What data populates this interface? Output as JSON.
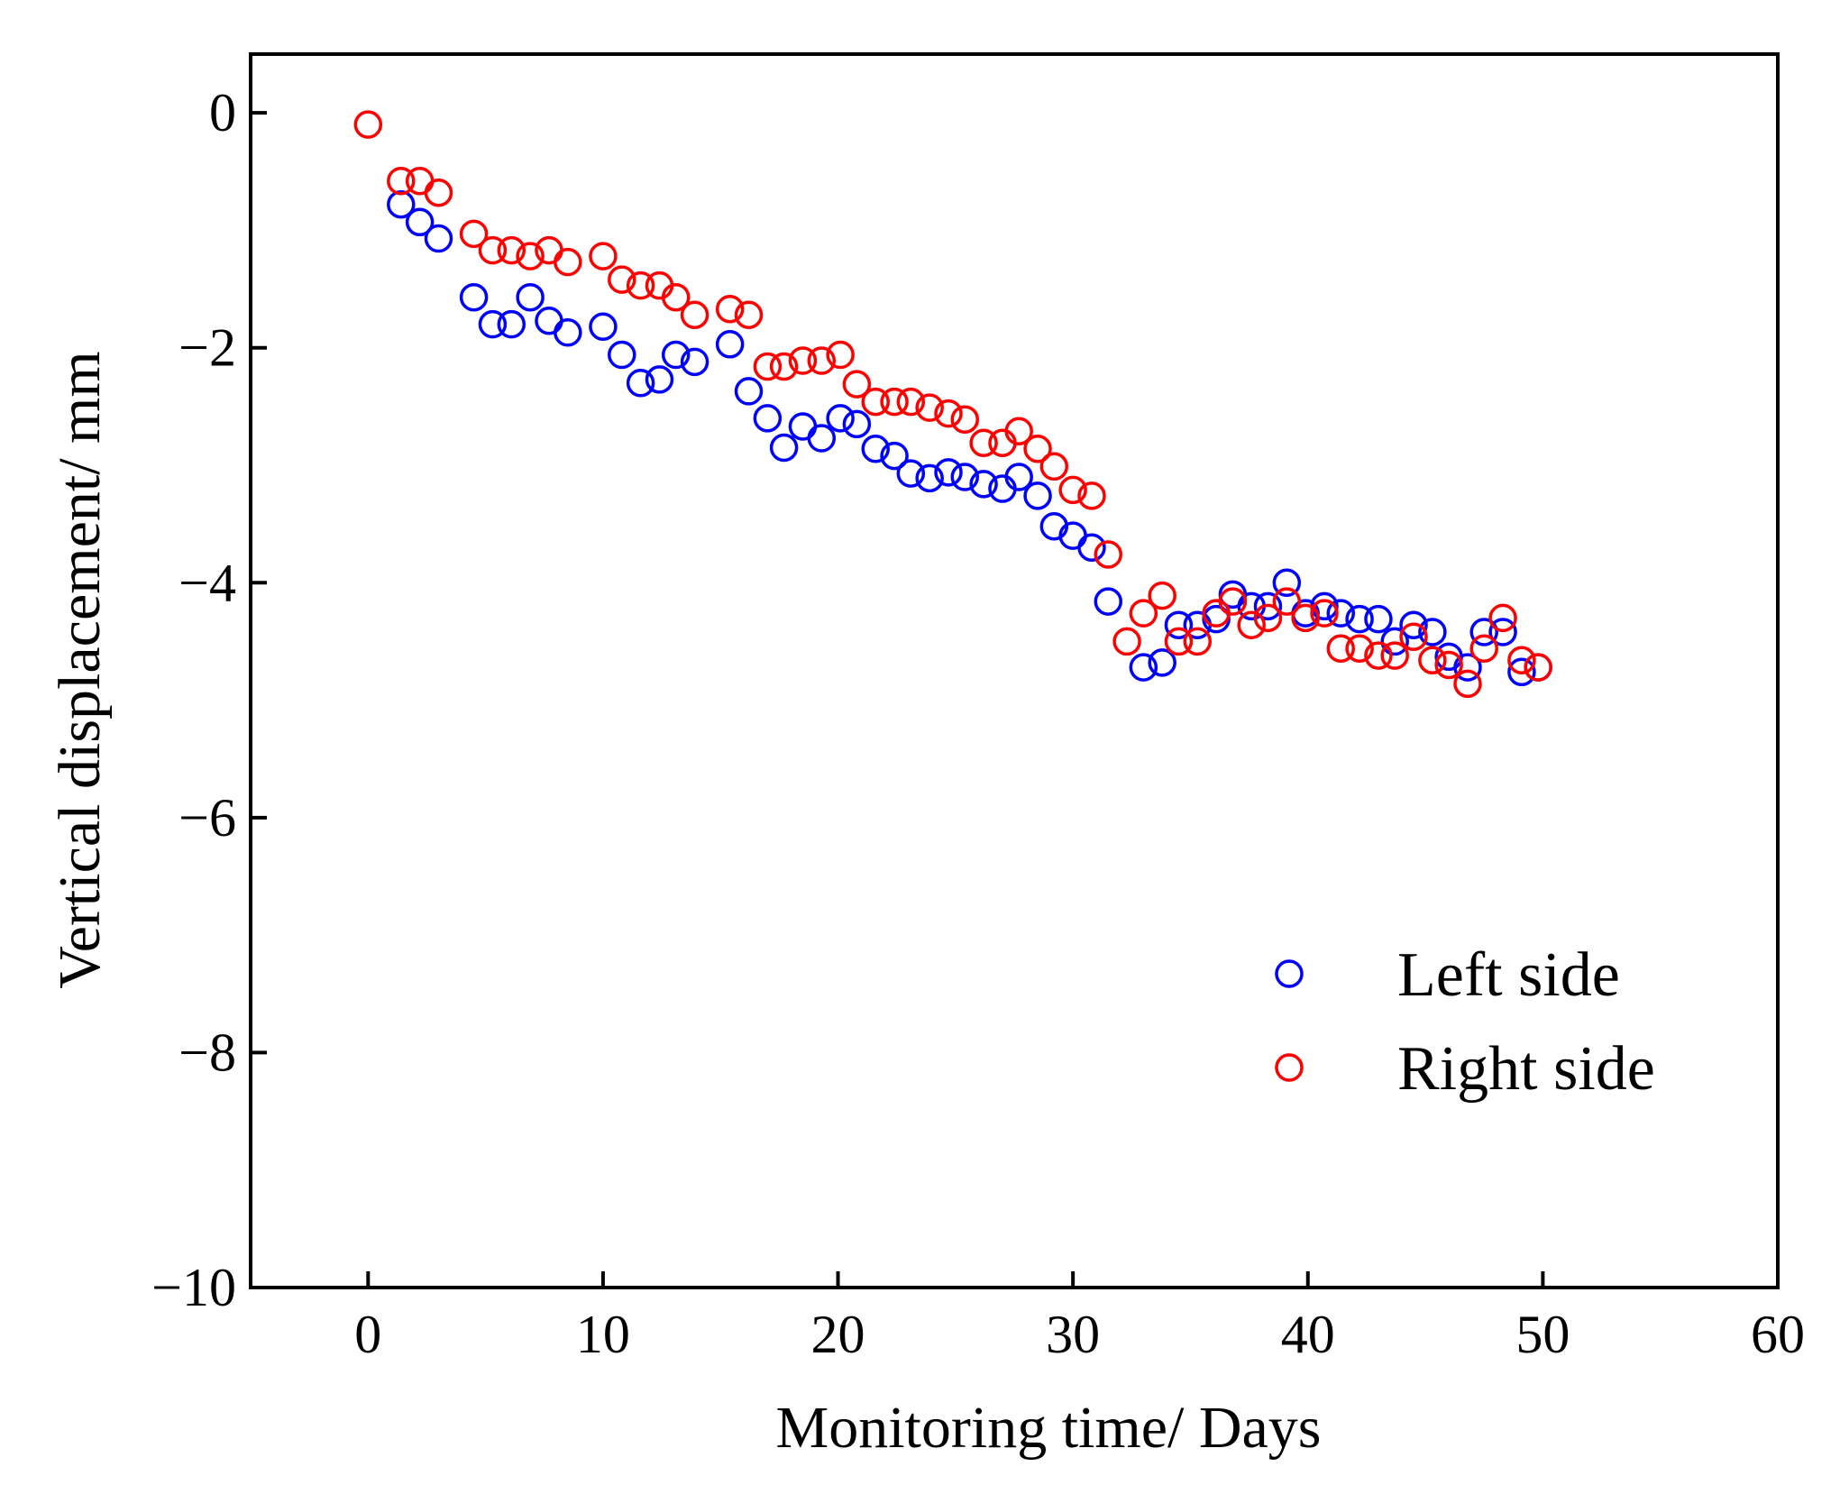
{
  "chart_data": {
    "type": "scatter",
    "title": "",
    "xlabel": "Monitoring time/ Days",
    "ylabel": "Vertical displacement/ mm",
    "xlim": [
      -5,
      60
    ],
    "ylim": [
      -10,
      0.5
    ],
    "xticks": [
      0,
      10,
      20,
      30,
      40,
      50,
      60
    ],
    "yticks": [
      0,
      -2,
      -4,
      -6,
      -8,
      -10
    ],
    "xtick_labels": [
      "0",
      "10",
      "20",
      "30",
      "40",
      "50",
      "60"
    ],
    "ytick_labels": [
      "0",
      "−2",
      "−4",
      "−6",
      "−8",
      "−10"
    ],
    "grid": false,
    "legend_position": "lower-right",
    "series": [
      {
        "name": "Left side",
        "color": "#0000ff",
        "marker": "open-circle",
        "points": [
          [
            1.4,
            -0.78
          ],
          [
            2.2,
            -0.93
          ],
          [
            3.0,
            -1.07
          ],
          [
            4.5,
            -1.57
          ],
          [
            5.3,
            -1.8
          ],
          [
            6.1,
            -1.8
          ],
          [
            6.9,
            -1.57
          ],
          [
            7.7,
            -1.77
          ],
          [
            8.5,
            -1.87
          ],
          [
            10.0,
            -1.82
          ],
          [
            10.8,
            -2.06
          ],
          [
            11.6,
            -2.3
          ],
          [
            12.4,
            -2.27
          ],
          [
            13.1,
            -2.06
          ],
          [
            13.9,
            -2.12
          ],
          [
            15.4,
            -1.97
          ],
          [
            16.2,
            -2.37
          ],
          [
            17.0,
            -2.6
          ],
          [
            17.7,
            -2.85
          ],
          [
            18.5,
            -2.67
          ],
          [
            19.3,
            -2.77
          ],
          [
            20.1,
            -2.6
          ],
          [
            20.8,
            -2.65
          ],
          [
            21.6,
            -2.86
          ],
          [
            22.4,
            -2.92
          ],
          [
            23.1,
            -3.07
          ],
          [
            23.9,
            -3.11
          ],
          [
            24.7,
            -3.06
          ],
          [
            25.4,
            -3.1
          ],
          [
            26.2,
            -3.16
          ],
          [
            27.0,
            -3.2
          ],
          [
            27.7,
            -3.1
          ],
          [
            28.5,
            -3.26
          ],
          [
            29.2,
            -3.52
          ],
          [
            30.0,
            -3.6
          ],
          [
            30.8,
            -3.7
          ],
          [
            31.5,
            -4.16
          ],
          [
            33.0,
            -4.72
          ],
          [
            33.8,
            -4.68
          ],
          [
            34.5,
            -4.36
          ],
          [
            35.3,
            -4.36
          ],
          [
            36.1,
            -4.31
          ],
          [
            36.8,
            -4.1
          ],
          [
            37.6,
            -4.2
          ],
          [
            38.3,
            -4.2
          ],
          [
            39.1,
            -4.0
          ],
          [
            39.9,
            -4.26
          ],
          [
            40.7,
            -4.2
          ],
          [
            41.4,
            -4.26
          ],
          [
            42.2,
            -4.31
          ],
          [
            43.0,
            -4.31
          ],
          [
            43.7,
            -4.5
          ],
          [
            44.5,
            -4.36
          ],
          [
            45.3,
            -4.42
          ],
          [
            46.0,
            -4.63
          ],
          [
            46.8,
            -4.72
          ],
          [
            47.5,
            -4.42
          ],
          [
            48.3,
            -4.42
          ],
          [
            49.1,
            -4.76
          ],
          [
            49.8,
            -4.72
          ]
        ]
      },
      {
        "name": "Right side",
        "color": "#ff0000",
        "marker": "open-circle",
        "points": [
          [
            0.0,
            -0.1
          ],
          [
            1.4,
            -0.58
          ],
          [
            2.2,
            -0.58
          ],
          [
            3.0,
            -0.68
          ],
          [
            4.5,
            -1.03
          ],
          [
            5.3,
            -1.17
          ],
          [
            6.1,
            -1.17
          ],
          [
            6.9,
            -1.22
          ],
          [
            7.7,
            -1.17
          ],
          [
            8.5,
            -1.27
          ],
          [
            10.0,
            -1.22
          ],
          [
            10.8,
            -1.42
          ],
          [
            11.6,
            -1.47
          ],
          [
            12.4,
            -1.47
          ],
          [
            13.1,
            -1.57
          ],
          [
            13.9,
            -1.72
          ],
          [
            15.4,
            -1.67
          ],
          [
            16.2,
            -1.72
          ],
          [
            17.0,
            -2.16
          ],
          [
            17.7,
            -2.16
          ],
          [
            18.5,
            -2.11
          ],
          [
            19.3,
            -2.11
          ],
          [
            20.1,
            -2.06
          ],
          [
            20.8,
            -2.31
          ],
          [
            21.6,
            -2.46
          ],
          [
            22.4,
            -2.46
          ],
          [
            23.1,
            -2.46
          ],
          [
            23.9,
            -2.51
          ],
          [
            24.7,
            -2.56
          ],
          [
            25.4,
            -2.61
          ],
          [
            26.2,
            -2.81
          ],
          [
            27.0,
            -2.81
          ],
          [
            27.7,
            -2.71
          ],
          [
            28.5,
            -2.86
          ],
          [
            29.2,
            -3.01
          ],
          [
            30.0,
            -3.21
          ],
          [
            30.8,
            -3.26
          ],
          [
            31.5,
            -3.76
          ],
          [
            32.3,
            -4.5
          ],
          [
            33.0,
            -4.26
          ],
          [
            33.8,
            -4.11
          ],
          [
            34.5,
            -4.5
          ],
          [
            35.3,
            -4.5
          ],
          [
            36.1,
            -4.26
          ],
          [
            36.8,
            -4.16
          ],
          [
            37.6,
            -4.36
          ],
          [
            38.3,
            -4.3
          ],
          [
            39.1,
            -4.16
          ],
          [
            39.9,
            -4.3
          ],
          [
            40.7,
            -4.26
          ],
          [
            41.4,
            -4.56
          ],
          [
            42.2,
            -4.56
          ],
          [
            43.0,
            -4.62
          ],
          [
            43.7,
            -4.62
          ],
          [
            44.5,
            -4.46
          ],
          [
            45.3,
            -4.66
          ],
          [
            46.0,
            -4.7
          ],
          [
            46.8,
            -4.86
          ],
          [
            47.5,
            -4.56
          ],
          [
            48.3,
            -4.3
          ],
          [
            49.1,
            -4.66
          ],
          [
            49.8,
            -4.72
          ]
        ]
      }
    ]
  }
}
